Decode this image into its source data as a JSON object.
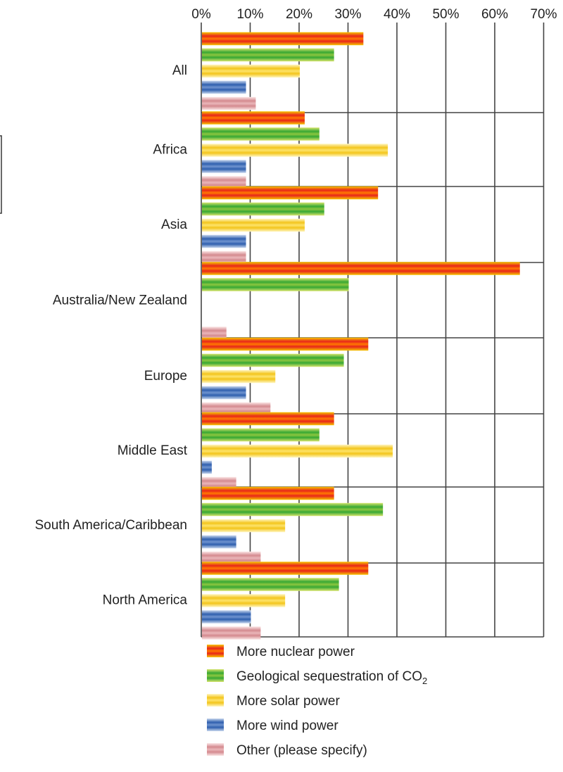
{
  "chart_data": {
    "type": "bar",
    "orientation": "horizontal",
    "title": "",
    "xlabel": "",
    "ylabel": "",
    "xlim": [
      0,
      70
    ],
    "x_ticks": [
      "0%",
      "10%",
      "20%",
      "30%",
      "40%",
      "50%",
      "60%",
      "70%"
    ],
    "x_axis_position": "top",
    "grid": true,
    "legend_position": "bottom",
    "categories": [
      "All",
      "Africa",
      "Asia",
      "Australia/New Zealand",
      "Europe",
      "Middle East",
      "South America/Caribbean",
      "North America"
    ],
    "series": [
      {
        "name": "More nuclear power",
        "values": [
          33,
          21,
          36,
          65,
          34,
          27,
          27,
          34
        ]
      },
      {
        "name": "Geological sequestration of CO",
        "name_subscript": "2",
        "values": [
          27,
          24,
          25,
          30,
          29,
          24,
          37,
          28
        ]
      },
      {
        "name": "More solar power",
        "values": [
          20,
          38,
          21,
          0,
          15,
          39,
          17,
          17
        ]
      },
      {
        "name": "More wind power",
        "values": [
          9,
          9,
          9,
          0,
          9,
          2,
          7,
          10
        ]
      },
      {
        "name": "Other (please specify)",
        "values": [
          11,
          9,
          9,
          5,
          14,
          7,
          12,
          12
        ]
      }
    ],
    "colors": {
      "More nuclear power": {
        "edge": "#f7c600",
        "mid": "#e8261b",
        "center": "#ff7a00"
      },
      "Geological sequestration of CO": {
        "edge": "#d7e46b",
        "mid": "#37a834",
        "center": "#8cc63f"
      },
      "More solar power": {
        "edge": "#fff6c2",
        "mid": "#f3c51c",
        "center": "#fde36a"
      },
      "More wind power": {
        "edge": "#c8d7ee",
        "mid": "#2f5fae",
        "center": "#6f93cf"
      },
      "Other (please specify)": {
        "edge": "#fbe6e6",
        "mid": "#d48a8f",
        "center": "#eab6b9"
      }
    }
  }
}
